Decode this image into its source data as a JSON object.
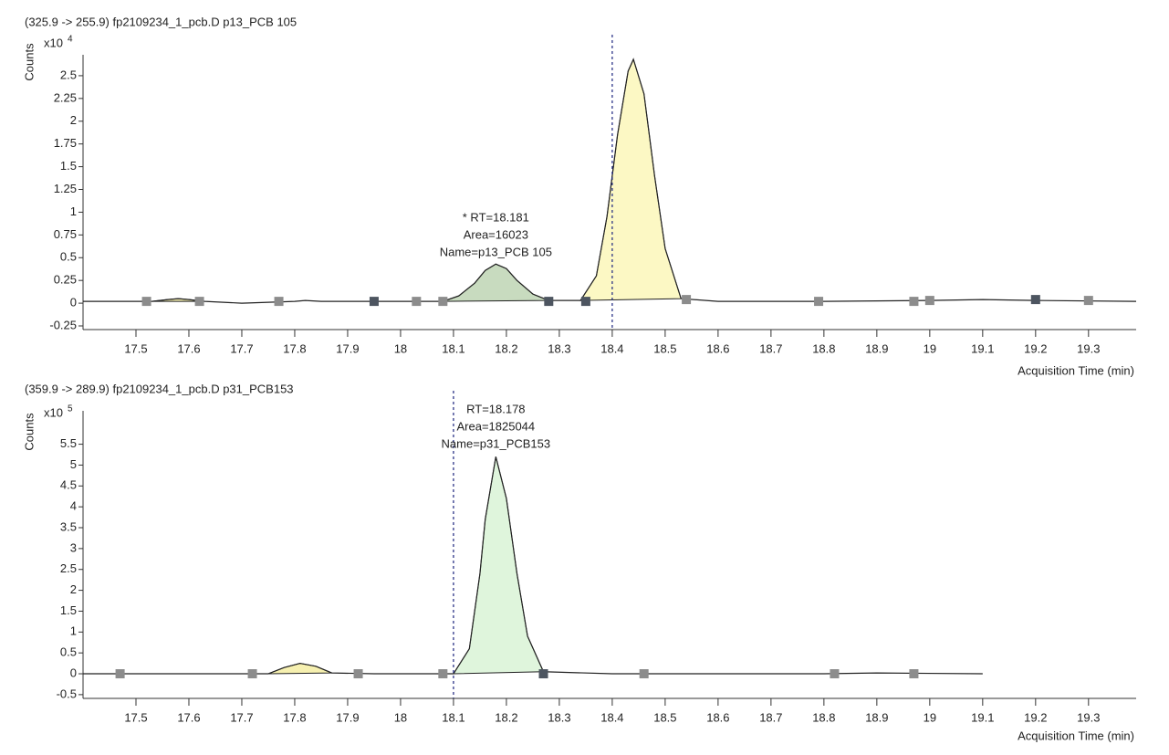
{
  "chart_data": [
    {
      "type": "line",
      "title": "(325.9 -> 255.9) fp2109234_1_pcb.D p13_PCB 105",
      "y_label": "Counts",
      "y_multiplier": {
        "base": "x10",
        "exponent": 4
      },
      "x_label": "Acquisition Time (min)",
      "annotation": [
        "* RT=18.181",
        "Area=16023",
        "Name=p13_PCB 105"
      ],
      "vline": 18.4,
      "xlim": [
        17.4,
        19.39
      ],
      "ylim": [
        -0.29,
        2.73
      ],
      "xticks": [
        17.5,
        17.6,
        17.7,
        17.8,
        17.9,
        18,
        18.1,
        18.2,
        18.3,
        18.4,
        18.5,
        18.6,
        18.7,
        18.8,
        18.9,
        19,
        19.1,
        19.2,
        19.3
      ],
      "yticks": [
        -0.25,
        0,
        0.25,
        0.5,
        0.75,
        1,
        1.25,
        1.5,
        1.75,
        2,
        2.25,
        2.5
      ],
      "color": "#222222",
      "x": [
        17.4,
        17.5,
        17.53,
        17.56,
        17.58,
        17.6,
        17.63,
        17.7,
        17.8,
        17.82,
        17.85,
        17.9,
        18.0,
        18.08,
        18.11,
        18.14,
        18.16,
        18.18,
        18.2,
        18.22,
        18.25,
        18.28,
        18.34,
        18.37,
        18.39,
        18.41,
        18.43,
        18.44,
        18.46,
        18.48,
        18.5,
        18.53,
        18.6,
        18.8,
        19.0,
        19.1,
        19.2,
        19.39
      ],
      "values": [
        0.02,
        0.02,
        0.02,
        0.04,
        0.05,
        0.04,
        0.02,
        0.0,
        0.02,
        0.03,
        0.02,
        0.02,
        0.02,
        0.02,
        0.08,
        0.22,
        0.36,
        0.43,
        0.38,
        0.25,
        0.1,
        0.03,
        0.03,
        0.3,
        0.95,
        1.85,
        2.55,
        2.68,
        2.3,
        1.4,
        0.6,
        0.05,
        0.02,
        0.02,
        0.03,
        0.04,
        0.03,
        0.02
      ],
      "fills": [
        {
          "color": "#f6f0b0",
          "x": [
            17.53,
            17.56,
            17.58,
            17.6,
            17.63
          ],
          "values": [
            0.02,
            0.04,
            0.05,
            0.04,
            0.02
          ]
        },
        {
          "color": "#c8dbbf",
          "x": [
            18.08,
            18.11,
            18.14,
            18.16,
            18.18,
            18.2,
            18.22,
            18.25,
            18.28
          ],
          "values": [
            0.02,
            0.08,
            0.22,
            0.36,
            0.43,
            0.38,
            0.25,
            0.1,
            0.03
          ]
        },
        {
          "color": "#fcf8c4",
          "x": [
            18.34,
            18.37,
            18.39,
            18.41,
            18.43,
            18.44,
            18.46,
            18.48,
            18.5,
            18.53
          ],
          "values": [
            0.03,
            0.3,
            0.95,
            1.85,
            2.55,
            2.68,
            2.3,
            1.4,
            0.6,
            0.05
          ]
        }
      ],
      "markers": [
        {
          "color": "#8c8c8c",
          "x": [
            17.52,
            17.62,
            17.77,
            18.03,
            18.08,
            18.54,
            18.79,
            18.97,
            19.0,
            19.3
          ],
          "values": [
            0.02,
            0.02,
            0.02,
            0.02,
            0.02,
            0.04,
            0.02,
            0.02,
            0.03,
            0.03
          ]
        },
        {
          "color": "#4d5560",
          "x": [
            17.95,
            18.28,
            18.35,
            19.2
          ],
          "values": [
            0.02,
            0.02,
            0.02,
            0.04
          ]
        }
      ]
    },
    {
      "type": "line",
      "title": "(359.9 -> 289.9) fp2109234_1_pcb.D p31_PCB153",
      "y_label": "Counts",
      "y_multiplier": {
        "base": "x10",
        "exponent": 5
      },
      "x_label": "Acquisition Time (min)",
      "annotation": [
        "RT=18.178",
        "Area=1825044",
        "Name=p31_PCB153"
      ],
      "vline": 18.1,
      "xlim": [
        17.4,
        19.39
      ],
      "ylim": [
        -0.59,
        6.3
      ],
      "xticks": [
        17.5,
        17.6,
        17.7,
        17.8,
        17.9,
        18,
        18.1,
        18.2,
        18.3,
        18.4,
        18.5,
        18.6,
        18.7,
        18.8,
        18.9,
        19,
        19.1,
        19.2,
        19.3
      ],
      "yticks": [
        -0.5,
        0,
        0.5,
        1,
        1.5,
        2,
        2.5,
        3,
        3.5,
        4,
        4.5,
        5,
        5.5
      ],
      "color": "#222222",
      "x": [
        17.4,
        17.75,
        17.78,
        17.81,
        17.84,
        17.87,
        17.95,
        18.1,
        18.13,
        18.15,
        18.16,
        18.18,
        18.2,
        18.22,
        18.24,
        18.27,
        18.4,
        18.8,
        18.9,
        19.1
      ],
      "values": [
        0,
        0,
        0.15,
        0.25,
        0.18,
        0.02,
        0,
        0,
        0.6,
        2.4,
        3.7,
        5.2,
        4.2,
        2.4,
        0.9,
        0.05,
        0,
        0,
        0.02,
        0
      ],
      "fills": [
        {
          "color": "#f6f0b0",
          "x": [
            17.75,
            17.78,
            17.81,
            17.84,
            17.87
          ],
          "values": [
            0,
            0.15,
            0.25,
            0.18,
            0.02
          ]
        },
        {
          "color": "#dff5dc",
          "x": [
            18.1,
            18.13,
            18.15,
            18.16,
            18.18,
            18.2,
            18.22,
            18.24,
            18.27
          ],
          "values": [
            0,
            0.6,
            2.4,
            3.7,
            5.2,
            4.2,
            2.4,
            0.9,
            0.05
          ]
        }
      ],
      "markers": [
        {
          "color": "#8c8c8c",
          "x": [
            17.47,
            17.72,
            17.92,
            18.08,
            18.46,
            18.82,
            18.97
          ],
          "values": [
            0,
            0,
            0,
            0,
            0,
            0,
            0
          ]
        },
        {
          "color": "#4d5560",
          "x": [
            18.27
          ],
          "values": [
            0
          ]
        }
      ]
    }
  ]
}
